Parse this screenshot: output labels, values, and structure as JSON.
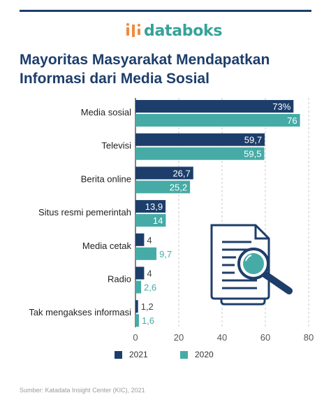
{
  "brand": {
    "name": "databoks"
  },
  "title": {
    "line1": "Mayoritas Masyarakat Mendapatkan",
    "line2": "Informasi dari Media Sosial"
  },
  "source": "Sumber: Katadata Insight Center (KIC), 2021",
  "colors": {
    "navy": "#1d3e6b",
    "teal": "#46aba6",
    "title": "#1d3e6b",
    "brand": "#35a39a"
  },
  "chart_data": {
    "type": "bar",
    "orientation": "horizontal",
    "title": "Mayoritas Masyarakat Mendapatkan Informasi dari Media Sosial",
    "categories": [
      "Media sosial",
      "Televisi",
      "Berita online",
      "Situs resmi pemerintah",
      "Media cetak",
      "Radio",
      "Tak mengakses informasi"
    ],
    "series": [
      {
        "name": "2021",
        "color": "#1d3e6b",
        "values": [
          73,
          59.7,
          26.7,
          13.9,
          4,
          4,
          1.2
        ],
        "labels": [
          "73%",
          "59,7",
          "26,7",
          "13,9",
          "4",
          "4",
          "1,2"
        ]
      },
      {
        "name": "2020",
        "color": "#46aba6",
        "values": [
          76,
          59.5,
          25.2,
          14,
          9.7,
          2.6,
          1.6
        ],
        "labels": [
          "76",
          "59,5",
          "25,2",
          "14",
          "9,7",
          "2,6",
          "1,6"
        ]
      }
    ],
    "xlim": [
      0,
      80
    ],
    "xticks": [
      0,
      20,
      40,
      60,
      80
    ],
    "grid": "vertical dashed",
    "legend": "bottom"
  }
}
